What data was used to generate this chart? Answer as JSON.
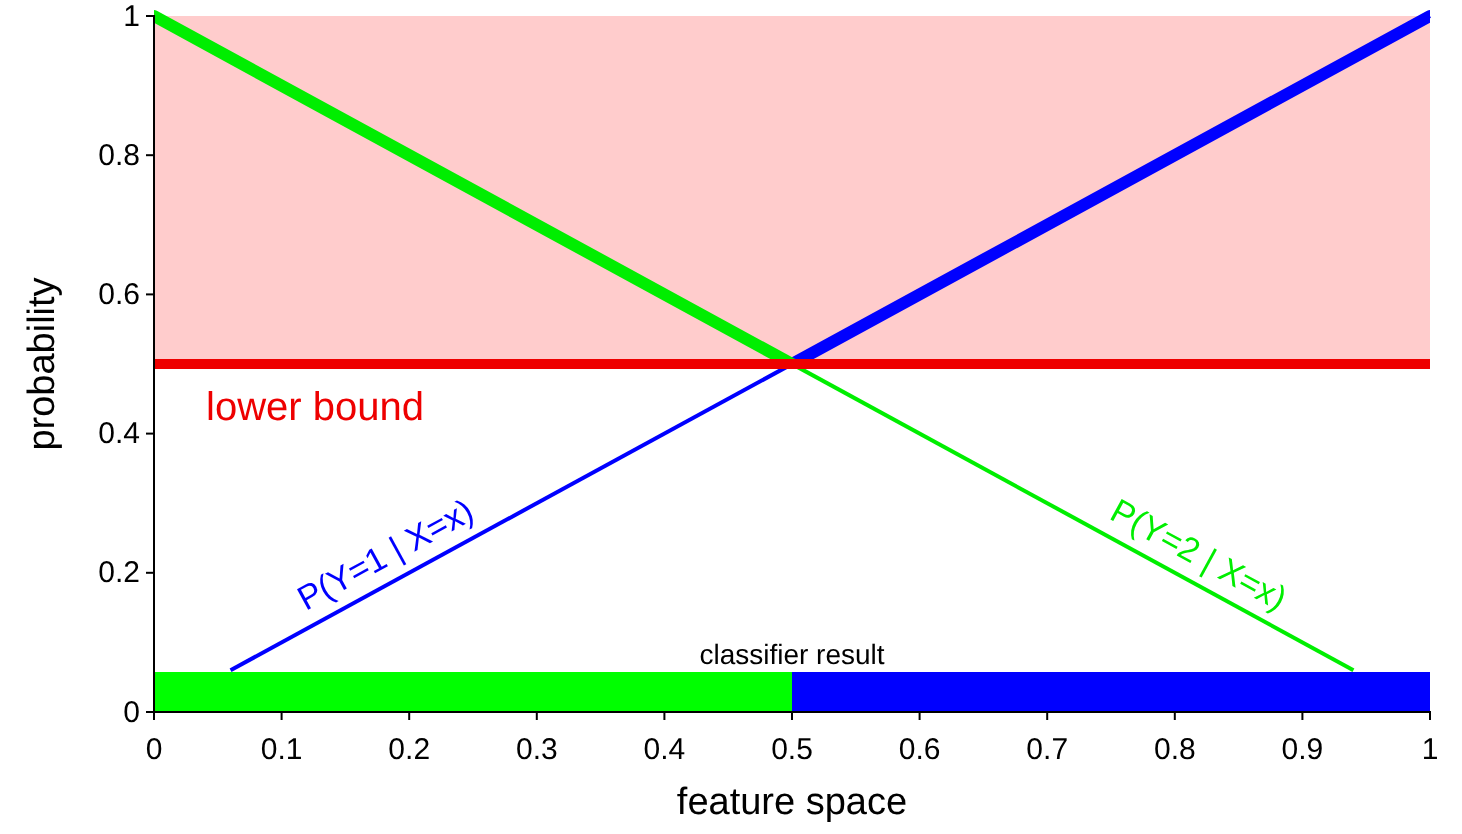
{
  "chart_data": {
    "type": "line",
    "xlabel": "feature space",
    "ylabel": "probability",
    "xlim": [
      0,
      1
    ],
    "xticks": [
      0,
      0.1,
      0.2,
      0.3,
      0.4,
      0.5,
      0.6,
      0.7,
      0.8,
      0.9,
      1
    ],
    "ylim": [
      0,
      1
    ],
    "yticks": [
      0,
      0.2,
      0.4,
      0.6,
      0.8,
      1
    ],
    "series": [
      {
        "name": "P(Y=1 | X=x)",
        "color": "#0000ff",
        "x": [
          0.06,
          1
        ],
        "values": [
          0.06,
          1
        ]
      },
      {
        "name": "P(Y=2 | X=x)",
        "color": "#00ee00",
        "x": [
          0,
          0.94
        ],
        "values": [
          1,
          0.06
        ]
      }
    ],
    "ref_lines": [
      {
        "axis": "y",
        "value": 0.5,
        "label": "lower bound",
        "color": "#ee0000"
      }
    ],
    "bands": [
      {
        "axis": "y",
        "from": 0.5,
        "to": 1,
        "color": "#ffcccc"
      },
      {
        "axis": "x",
        "from": 0,
        "to": 0.5,
        "color": "#00ff00"
      },
      {
        "axis": "x",
        "from": 0.5,
        "to": 1,
        "color": "#0000ff"
      }
    ],
    "annotations": [
      "classifier result"
    ],
    "grid": false,
    "legend": false,
    "marker": "none",
    "line_style": "solid"
  }
}
